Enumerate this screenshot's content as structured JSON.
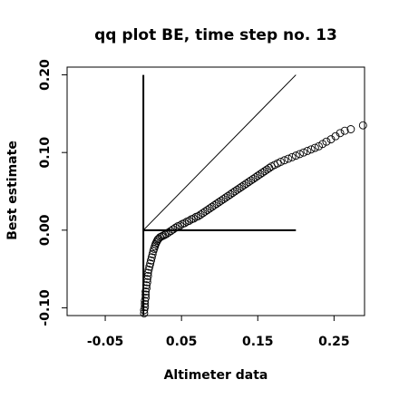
{
  "chart_data": {
    "type": "scatter",
    "title": "qq plot BE, time step no. 13",
    "xlabel": "Altimeter data",
    "ylabel": "Best estimate",
    "xlim": [
      -0.1,
      0.29
    ],
    "ylim": [
      -0.11,
      0.21
    ],
    "xticks": [
      -0.05,
      0.05,
      0.15,
      0.25
    ],
    "xtick_labels": [
      "-0.05",
      "0.05",
      "0.15",
      "0.25"
    ],
    "yticks": [
      -0.1,
      0.0,
      0.1,
      0.2
    ],
    "ytick_labels": [
      "-0.10",
      "0.00",
      "0.10",
      "0.20"
    ],
    "grid": false,
    "legend": "none",
    "reference_lines": [
      {
        "name": "identity",
        "x": [
          0.0,
          0.2
        ],
        "y": [
          0.0,
          0.2
        ],
        "width": 1
      },
      {
        "name": "vertical",
        "x": [
          0.0,
          0.0
        ],
        "y": [
          -0.11,
          0.2
        ],
        "width": 2
      },
      {
        "name": "horizontal",
        "x": [
          0.0,
          0.2
        ],
        "y": [
          0.0,
          0.0
        ],
        "width": 2
      }
    ],
    "points": {
      "x": [
        0.001,
        0.001,
        0.002,
        0.002,
        0.002,
        0.003,
        0.003,
        0.003,
        0.004,
        0.004,
        0.005,
        0.005,
        0.006,
        0.006,
        0.007,
        0.008,
        0.009,
        0.01,
        0.011,
        0.012,
        0.013,
        0.014,
        0.015,
        0.016,
        0.017,
        0.018,
        0.019,
        0.02,
        0.022,
        0.024,
        0.026,
        0.028,
        0.03,
        0.033,
        0.036,
        0.039,
        0.042,
        0.045,
        0.048,
        0.051,
        0.054,
        0.057,
        0.06,
        0.063,
        0.066,
        0.069,
        0.072,
        0.075,
        0.078,
        0.081,
        0.084,
        0.087,
        0.09,
        0.093,
        0.096,
        0.099,
        0.102,
        0.105,
        0.108,
        0.111,
        0.114,
        0.117,
        0.12,
        0.123,
        0.126,
        0.129,
        0.132,
        0.135,
        0.138,
        0.141,
        0.144,
        0.147,
        0.15,
        0.153,
        0.156,
        0.159,
        0.162,
        0.165,
        0.168,
        0.172,
        0.176,
        0.18,
        0.185,
        0.19,
        0.195,
        0.2,
        0.205,
        0.21,
        0.215,
        0.22,
        0.225,
        0.23,
        0.235,
        0.24,
        0.246,
        0.252,
        0.258,
        0.264,
        0.272,
        0.288
      ],
      "y": [
        -0.107,
        -0.103,
        -0.099,
        -0.095,
        -0.091,
        -0.087,
        -0.083,
        -0.079,
        -0.075,
        -0.071,
        -0.067,
        -0.063,
        -0.059,
        -0.055,
        -0.051,
        -0.047,
        -0.043,
        -0.039,
        -0.035,
        -0.031,
        -0.027,
        -0.024,
        -0.021,
        -0.018,
        -0.016,
        -0.014,
        -0.012,
        -0.011,
        -0.009,
        -0.008,
        -0.007,
        -0.006,
        -0.005,
        -0.003,
        -0.001,
        0.001,
        0.003,
        0.005,
        0.006,
        0.008,
        0.009,
        0.011,
        0.012,
        0.014,
        0.015,
        0.017,
        0.018,
        0.02,
        0.022,
        0.024,
        0.026,
        0.028,
        0.03,
        0.032,
        0.034,
        0.036,
        0.038,
        0.04,
        0.042,
        0.044,
        0.046,
        0.048,
        0.05,
        0.052,
        0.054,
        0.056,
        0.058,
        0.06,
        0.062,
        0.064,
        0.066,
        0.068,
        0.07,
        0.072,
        0.074,
        0.076,
        0.078,
        0.08,
        0.082,
        0.084,
        0.086,
        0.088,
        0.09,
        0.092,
        0.094,
        0.096,
        0.098,
        0.1,
        0.102,
        0.104,
        0.106,
        0.108,
        0.111,
        0.114,
        0.117,
        0.121,
        0.125,
        0.128,
        0.13,
        0.135
      ]
    }
  }
}
